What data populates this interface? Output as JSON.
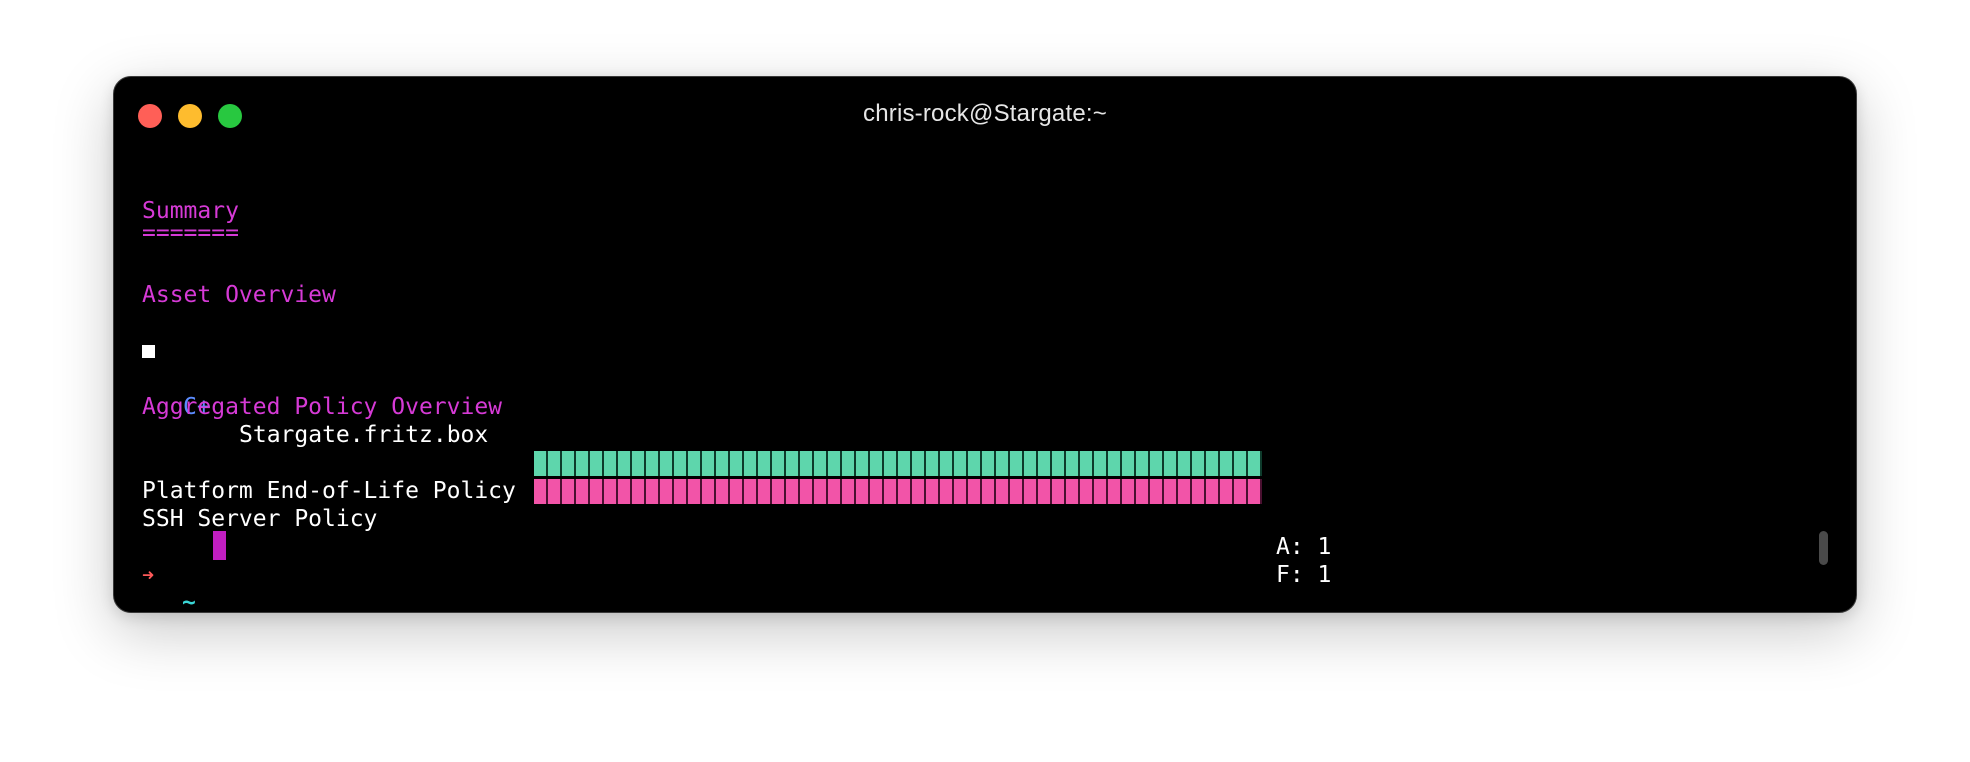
{
  "window": {
    "title": "chris-rock@Stargate:~"
  },
  "report": {
    "summary_heading": "Summary",
    "summary_underline": "=======",
    "asset_overview_heading": "Asset Overview",
    "asset": {
      "grade": "C+",
      "name": "Stargate.fritz.box"
    },
    "policy_overview_heading": "Aggregated Policy Overview",
    "policies": [
      {
        "name": "Platform End-of-Life Policy",
        "grade_count": "A: 1",
        "bar_color": "#5ed6ac"
      },
      {
        "name": "SSH Server Policy",
        "grade_count": "F: 1",
        "bar_color": "#f254a8"
      }
    ]
  },
  "prompt": {
    "arrow": "➜",
    "path": "~"
  },
  "colors": {
    "heading": "#d63ad6",
    "grade_badge": "#5c8cff",
    "cursor": "#c21ec2"
  }
}
